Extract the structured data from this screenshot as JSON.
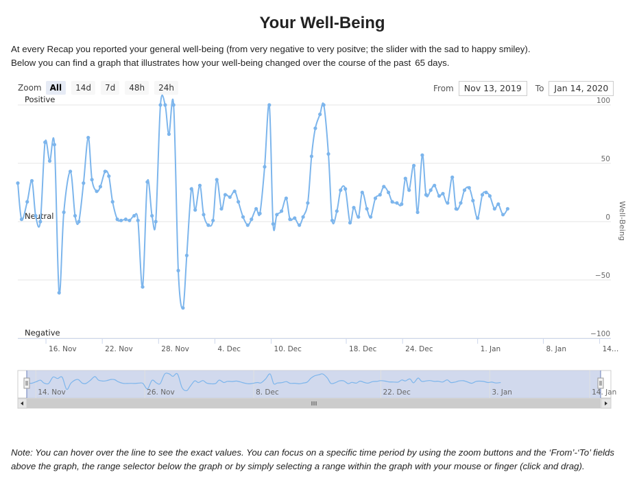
{
  "page": {
    "title": "Your Well-Being",
    "intro_line1": "At every Recap you reported your general well-being (from very negative to very positve; the slider with the sad to happy smiley).",
    "intro_line2": "Below you can find a graph that illustrates how your well-being changed over the course of the past",
    "intro_days": "65 days.",
    "note": "Note: You can hover over the line to see the exact values. You can focus on a specific time period by using the zoom buttons and the ‘From’-‘To’ fields above the graph, the range selector below the graph or by simply selecting a range within the graph with your mouse or finger (click and drag)."
  },
  "zoom": {
    "label": "Zoom",
    "buttons": [
      "All",
      "14d",
      "7d",
      "48h",
      "24h"
    ],
    "active": "All"
  },
  "range": {
    "from_label": "From",
    "from_value": "Nov 13, 2019",
    "to_label": "To",
    "to_value": "Jan 14, 2020"
  },
  "colors": {
    "series": "#7cb5ec",
    "navigator_mask": "#c5cfe8",
    "navigator_border": "#6b7fb8",
    "grid": "#e6e6e6"
  },
  "chart_data": {
    "type": "line",
    "ylabel": "Well-Being",
    "ylim": [
      -100,
      100
    ],
    "y_ticks": [
      100,
      50,
      0,
      -50,
      -100
    ],
    "y_category_labels": [
      {
        "y": 100,
        "label": "Positive"
      },
      {
        "y": 0,
        "label": "Neutral"
      },
      {
        "y": -100,
        "label": "Negative"
      }
    ],
    "x_ticks": [
      {
        "x": 3.0,
        "label": "16. Nov"
      },
      {
        "x": 9.0,
        "label": "22. Nov"
      },
      {
        "x": 15.0,
        "label": "28. Nov"
      },
      {
        "x": 21.0,
        "label": "4. Dec"
      },
      {
        "x": 27.0,
        "label": "10. Dec"
      },
      {
        "x": 35.0,
        "label": "18. Dec"
      },
      {
        "x": 41.0,
        "label": "24. Dec"
      },
      {
        "x": 49.0,
        "label": "1. Jan"
      },
      {
        "x": 56.0,
        "label": "8. Jan"
      },
      {
        "x": 62.0,
        "label": "14…"
      }
    ],
    "navigator_ticks": [
      {
        "x": 1.0,
        "label": "14. Nov"
      },
      {
        "x": 13.0,
        "label": "26. Nov"
      },
      {
        "x": 25.0,
        "label": "8. Dec"
      },
      {
        "x": 39.0,
        "label": "22. Dec"
      },
      {
        "x": 51.0,
        "label": "3. Jan"
      },
      {
        "x": 62.0,
        "label": "14. Jan"
      }
    ],
    "series": [
      {
        "points": [
          [
            0.0,
            33
          ],
          [
            0.4,
            2
          ],
          [
            1.0,
            17
          ],
          [
            1.5,
            35
          ],
          [
            1.9,
            5
          ],
          [
            2.4,
            0
          ],
          [
            2.9,
            68
          ],
          [
            3.4,
            52
          ],
          [
            3.9,
            66
          ],
          [
            4.4,
            -61
          ],
          [
            4.9,
            8
          ],
          [
            5.6,
            43
          ],
          [
            6.1,
            5
          ],
          [
            6.5,
            0
          ],
          [
            7.0,
            33
          ],
          [
            7.5,
            72
          ],
          [
            7.9,
            36
          ],
          [
            8.4,
            26
          ],
          [
            8.8,
            30
          ],
          [
            9.3,
            43
          ],
          [
            9.7,
            39
          ],
          [
            10.1,
            17
          ],
          [
            10.6,
            2
          ],
          [
            11.0,
            1
          ],
          [
            11.5,
            2
          ],
          [
            11.9,
            1
          ],
          [
            12.4,
            5
          ],
          [
            12.8,
            1
          ],
          [
            13.3,
            -56
          ],
          [
            13.8,
            34
          ],
          [
            14.3,
            5
          ],
          [
            14.7,
            0
          ],
          [
            15.2,
            100
          ],
          [
            15.7,
            100
          ],
          [
            16.1,
            75
          ],
          [
            16.6,
            100
          ],
          [
            17.1,
            -42
          ],
          [
            17.6,
            -74
          ],
          [
            18.0,
            -29
          ],
          [
            18.5,
            28
          ],
          [
            18.9,
            10
          ],
          [
            19.4,
            31
          ],
          [
            19.8,
            6
          ],
          [
            20.3,
            -3
          ],
          [
            20.8,
            1
          ],
          [
            21.2,
            36
          ],
          [
            21.7,
            11
          ],
          [
            22.1,
            23
          ],
          [
            22.6,
            21
          ],
          [
            23.1,
            26
          ],
          [
            23.5,
            17
          ],
          [
            24.0,
            4
          ],
          [
            24.5,
            -3
          ],
          [
            24.9,
            2
          ],
          [
            25.4,
            11
          ],
          [
            25.8,
            7
          ],
          [
            26.3,
            47
          ],
          [
            26.8,
            100
          ],
          [
            27.2,
            -2
          ],
          [
            27.6,
            6
          ],
          [
            28.1,
            9
          ],
          [
            28.6,
            20
          ],
          [
            29.0,
            2
          ],
          [
            29.5,
            3
          ],
          [
            30.0,
            -3
          ],
          [
            30.4,
            4
          ],
          [
            30.9,
            16
          ],
          [
            31.3,
            56
          ],
          [
            31.7,
            80
          ],
          [
            32.2,
            92
          ],
          [
            32.6,
            100
          ],
          [
            33.1,
            58
          ],
          [
            33.5,
            1
          ],
          [
            34.0,
            9
          ],
          [
            34.4,
            27
          ],
          [
            34.9,
            28
          ],
          [
            35.4,
            -1
          ],
          [
            35.8,
            12
          ],
          [
            36.3,
            4
          ],
          [
            36.7,
            25
          ],
          [
            37.2,
            11
          ],
          [
            37.6,
            4
          ],
          [
            38.1,
            20
          ],
          [
            38.6,
            23
          ],
          [
            39.0,
            30
          ],
          [
            39.5,
            25
          ],
          [
            39.9,
            17
          ],
          [
            40.4,
            16
          ],
          [
            40.9,
            15
          ],
          [
            41.3,
            37
          ],
          [
            41.7,
            27
          ],
          [
            42.2,
            48
          ],
          [
            42.6,
            8
          ],
          [
            43.1,
            57
          ],
          [
            43.5,
            23
          ],
          [
            44.0,
            27
          ],
          [
            44.4,
            31
          ],
          [
            44.9,
            22
          ],
          [
            45.3,
            24
          ],
          [
            45.8,
            16
          ],
          [
            46.3,
            38
          ],
          [
            46.7,
            11
          ],
          [
            47.2,
            16
          ],
          [
            47.6,
            27
          ],
          [
            48.1,
            29
          ],
          [
            48.5,
            18
          ],
          [
            49.0,
            3
          ],
          [
            49.5,
            23
          ],
          [
            49.9,
            25
          ],
          [
            50.3,
            22
          ],
          [
            50.8,
            11
          ],
          [
            51.2,
            15
          ],
          [
            51.7,
            6
          ],
          [
            52.2,
            11
          ]
        ]
      }
    ]
  }
}
